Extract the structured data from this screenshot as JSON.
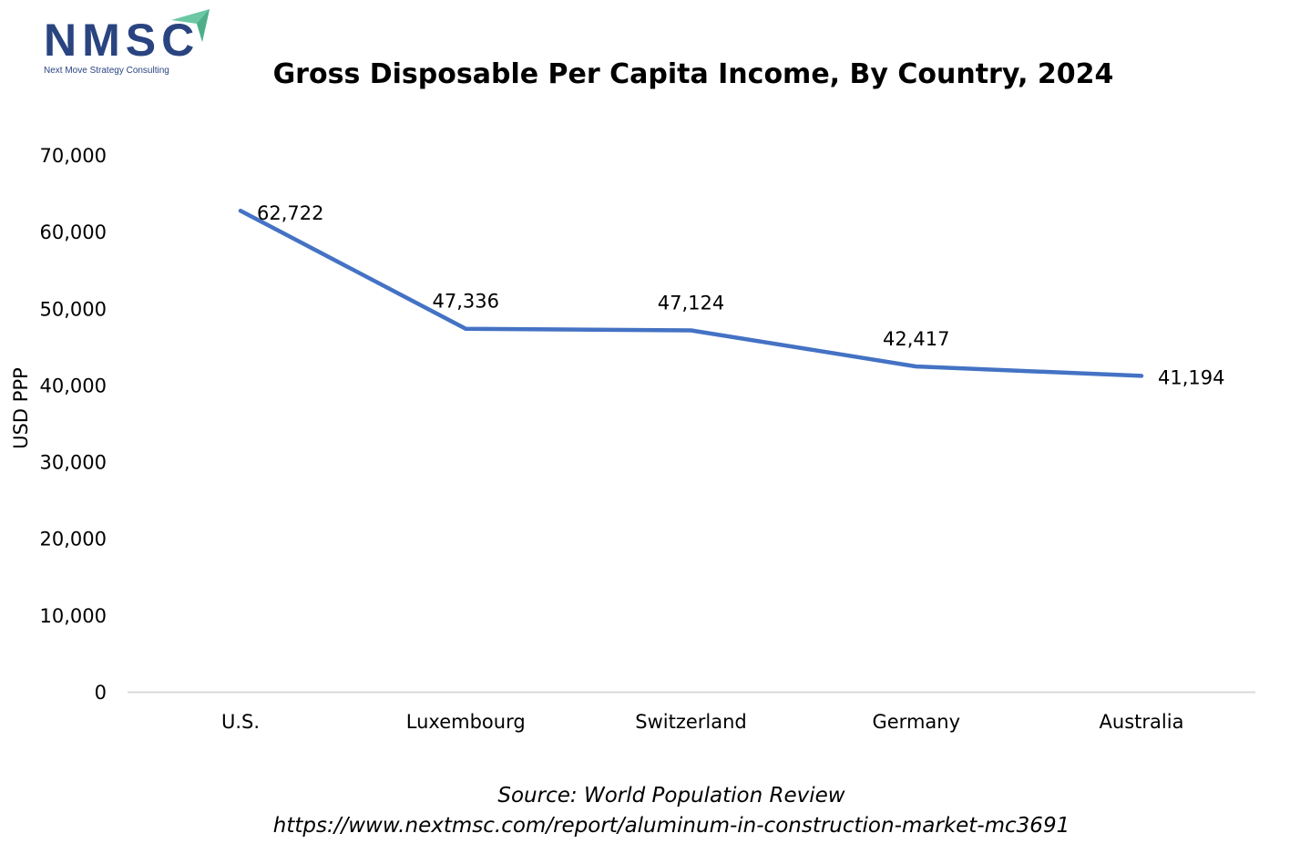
{
  "logo": {
    "name": "NMSC",
    "tagline": "Next Move Strategy Consulting"
  },
  "chart_data": {
    "type": "line",
    "title": "Gross Disposable Per Capita Income, By Country, 2024",
    "xlabel": "",
    "ylabel": "USD PPP",
    "categories": [
      "U.S.",
      "Luxembourg",
      "Switzerland",
      "Germany",
      "Australia"
    ],
    "values": [
      62722,
      47336,
      47124,
      42417,
      41194
    ],
    "data_labels": [
      "62,722",
      "47,336",
      "47,124",
      "42,417",
      "41,194"
    ],
    "ylim": [
      0,
      70000
    ],
    "yticks": [
      0,
      10000,
      20000,
      30000,
      40000,
      50000,
      60000,
      70000
    ],
    "ytick_labels": [
      "0",
      "10,000",
      "20,000",
      "30,000",
      "40,000",
      "50,000",
      "60,000",
      "70,000"
    ],
    "grid": false,
    "series_color": "#4472c4"
  },
  "footer": {
    "source": "Source: World Population Review",
    "url": "https://www.nextmsc.com/report/aluminum-in-construction-market-mc3691"
  }
}
